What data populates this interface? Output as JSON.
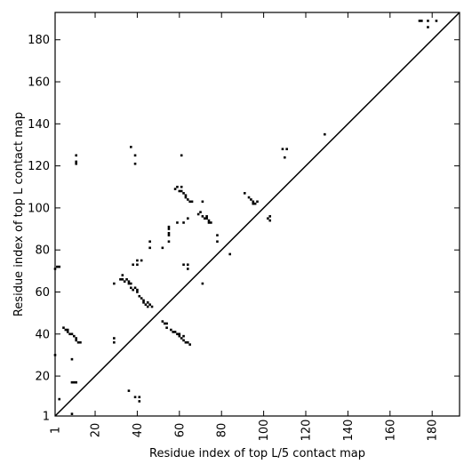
{
  "chart_data": {
    "type": "scatter",
    "title": "",
    "xlabel": "Residue index of top L/5 contact map",
    "ylabel": "Residue index of top L contact map",
    "xlim": [
      1,
      193
    ],
    "ylim": [
      1,
      193
    ],
    "xticks": [
      1,
      20,
      40,
      60,
      80,
      100,
      120,
      140,
      160,
      180
    ],
    "yticks": [
      1,
      20,
      40,
      60,
      80,
      100,
      120,
      140,
      160,
      180
    ],
    "grid": false,
    "diagonal": {
      "from": [
        1,
        1
      ],
      "to": [
        193,
        193
      ]
    },
    "marker_color": "#000000",
    "series": [
      {
        "region": "above-diagonal",
        "points": [
          [
            1,
            71
          ],
          [
            2,
            72
          ],
          [
            3,
            72
          ],
          [
            11,
            121
          ],
          [
            11,
            122
          ],
          [
            11,
            125
          ],
          [
            37,
            129
          ],
          [
            39,
            121
          ],
          [
            39,
            125
          ],
          [
            61,
            125
          ],
          [
            109,
            128
          ],
          [
            110,
            124
          ],
          [
            111,
            128
          ],
          [
            129,
            135
          ],
          [
            174,
            189
          ],
          [
            175,
            189
          ],
          [
            178,
            186
          ],
          [
            178,
            189
          ],
          [
            182,
            189
          ]
        ]
      },
      {
        "region": "below-diagonal",
        "points": [
          [
            1,
            30
          ],
          [
            3,
            9
          ],
          [
            9,
            2
          ],
          [
            9,
            28
          ],
          [
            9,
            17
          ],
          [
            10,
            17
          ],
          [
            11,
            17
          ],
          [
            7,
            41
          ],
          [
            8,
            40
          ],
          [
            9,
            40
          ],
          [
            10,
            39
          ],
          [
            11,
            38
          ],
          [
            11,
            37
          ],
          [
            12,
            36
          ],
          [
            13,
            36
          ],
          [
            5,
            43
          ],
          [
            6,
            42
          ],
          [
            7,
            42
          ],
          [
            29,
            36
          ],
          [
            29,
            38
          ],
          [
            29,
            64
          ],
          [
            32,
            66
          ],
          [
            33,
            66
          ],
          [
            33,
            68
          ],
          [
            34,
            65
          ],
          [
            35,
            66
          ],
          [
            36,
            64
          ],
          [
            36,
            65
          ],
          [
            37,
            64
          ],
          [
            37,
            62
          ],
          [
            38,
            61
          ],
          [
            39,
            62
          ],
          [
            40,
            61
          ],
          [
            40,
            60
          ],
          [
            41,
            58
          ],
          [
            42,
            57
          ],
          [
            43,
            56
          ],
          [
            43,
            55
          ],
          [
            44,
            54
          ],
          [
            45,
            55
          ],
          [
            45,
            53
          ],
          [
            46,
            54
          ],
          [
            47,
            53
          ],
          [
            36,
            13
          ],
          [
            39,
            10
          ],
          [
            41,
            8
          ],
          [
            41,
            10
          ],
          [
            38,
            73
          ],
          [
            40,
            73
          ],
          [
            40,
            75
          ],
          [
            42,
            75
          ],
          [
            46,
            81
          ],
          [
            46,
            84
          ],
          [
            52,
            81
          ],
          [
            52,
            46
          ],
          [
            53,
            45
          ],
          [
            54,
            45
          ],
          [
            54,
            43
          ],
          [
            56,
            42
          ],
          [
            57,
            41
          ],
          [
            58,
            41
          ],
          [
            59,
            40
          ],
          [
            60,
            40
          ],
          [
            60,
            39
          ],
          [
            61,
            38
          ],
          [
            62,
            37
          ],
          [
            62,
            39
          ],
          [
            63,
            36
          ],
          [
            64,
            36
          ],
          [
            65,
            35
          ],
          [
            55,
            84
          ],
          [
            55,
            87
          ],
          [
            55,
            88
          ],
          [
            55,
            90
          ],
          [
            55,
            91
          ],
          [
            59,
            93
          ],
          [
            62,
            93
          ],
          [
            64,
            95
          ],
          [
            62,
            73
          ],
          [
            64,
            73
          ],
          [
            64,
            71
          ],
          [
            58,
            109
          ],
          [
            59,
            110
          ],
          [
            60,
            108
          ],
          [
            61,
            108
          ],
          [
            61,
            110
          ],
          [
            62,
            107
          ],
          [
            63,
            106
          ],
          [
            63,
            105
          ],
          [
            64,
            104
          ],
          [
            65,
            103
          ],
          [
            66,
            103
          ],
          [
            69,
            97
          ],
          [
            70,
            98
          ],
          [
            71,
            96
          ],
          [
            71,
            103
          ],
          [
            72,
            95
          ],
          [
            73,
            95
          ],
          [
            73,
            96
          ],
          [
            74,
            94
          ],
          [
            74,
            93
          ],
          [
            75,
            93
          ],
          [
            71,
            64
          ],
          [
            78,
            84
          ],
          [
            78,
            87
          ],
          [
            84,
            78
          ],
          [
            91,
            107
          ],
          [
            93,
            105
          ],
          [
            94,
            104
          ],
          [
            95,
            103
          ],
          [
            95,
            102
          ],
          [
            96,
            102
          ],
          [
            97,
            103
          ],
          [
            102,
            95
          ],
          [
            103,
            96
          ],
          [
            103,
            94
          ]
        ]
      }
    ]
  }
}
